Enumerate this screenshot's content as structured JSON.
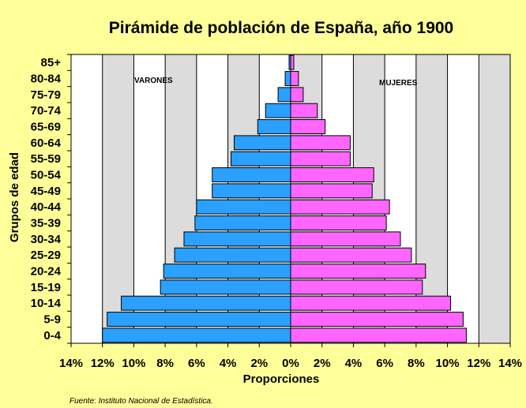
{
  "chart_data": {
    "type": "bar",
    "orientation": "horizontal",
    "title": "Pirámide de población de España, año 1900",
    "xlabel": "Proporciones",
    "ylabel": "Grupos de edad",
    "source": "Fuente: Instituto Nacional de Estadística.",
    "categories": [
      "0-4",
      "5-9",
      "10-14",
      "15-19",
      "20-24",
      "25-29",
      "30-34",
      "35-39",
      "40-44",
      "45-49",
      "50-54",
      "55-59",
      "60-64",
      "65-69",
      "70-74",
      "75-79",
      "80-84",
      "85+"
    ],
    "series": [
      {
        "name": "VARONES",
        "color": "#2aa0ff",
        "values": [
          12.0,
          11.7,
          10.8,
          8.3,
          8.1,
          7.4,
          6.8,
          6.1,
          6.0,
          5.0,
          5.0,
          3.8,
          3.6,
          2.1,
          1.6,
          0.8,
          0.35,
          0.1
        ]
      },
      {
        "name": "MUJERES",
        "color": "#ff66ff",
        "values": [
          11.2,
          11.0,
          10.2,
          8.4,
          8.6,
          7.7,
          7.0,
          6.1,
          6.3,
          5.2,
          5.3,
          3.8,
          3.8,
          2.2,
          1.7,
          0.8,
          0.5,
          0.2
        ]
      }
    ],
    "xlim": [
      -14,
      14
    ],
    "x_ticks": [
      "14%",
      "12%",
      "10%",
      "8%",
      "6%",
      "4%",
      "2%",
      "0%",
      "2%",
      "4%",
      "6%",
      "8%",
      "10%",
      "12%",
      "14%"
    ],
    "grid": true,
    "annotations": [
      "VARONES",
      "MUJERES"
    ]
  },
  "colors": {
    "background": "#ffff99",
    "plot_area": "#ffffff",
    "plot_alt": "#dcdcdc",
    "male": "#2aa0ff",
    "female": "#ff66ff"
  }
}
